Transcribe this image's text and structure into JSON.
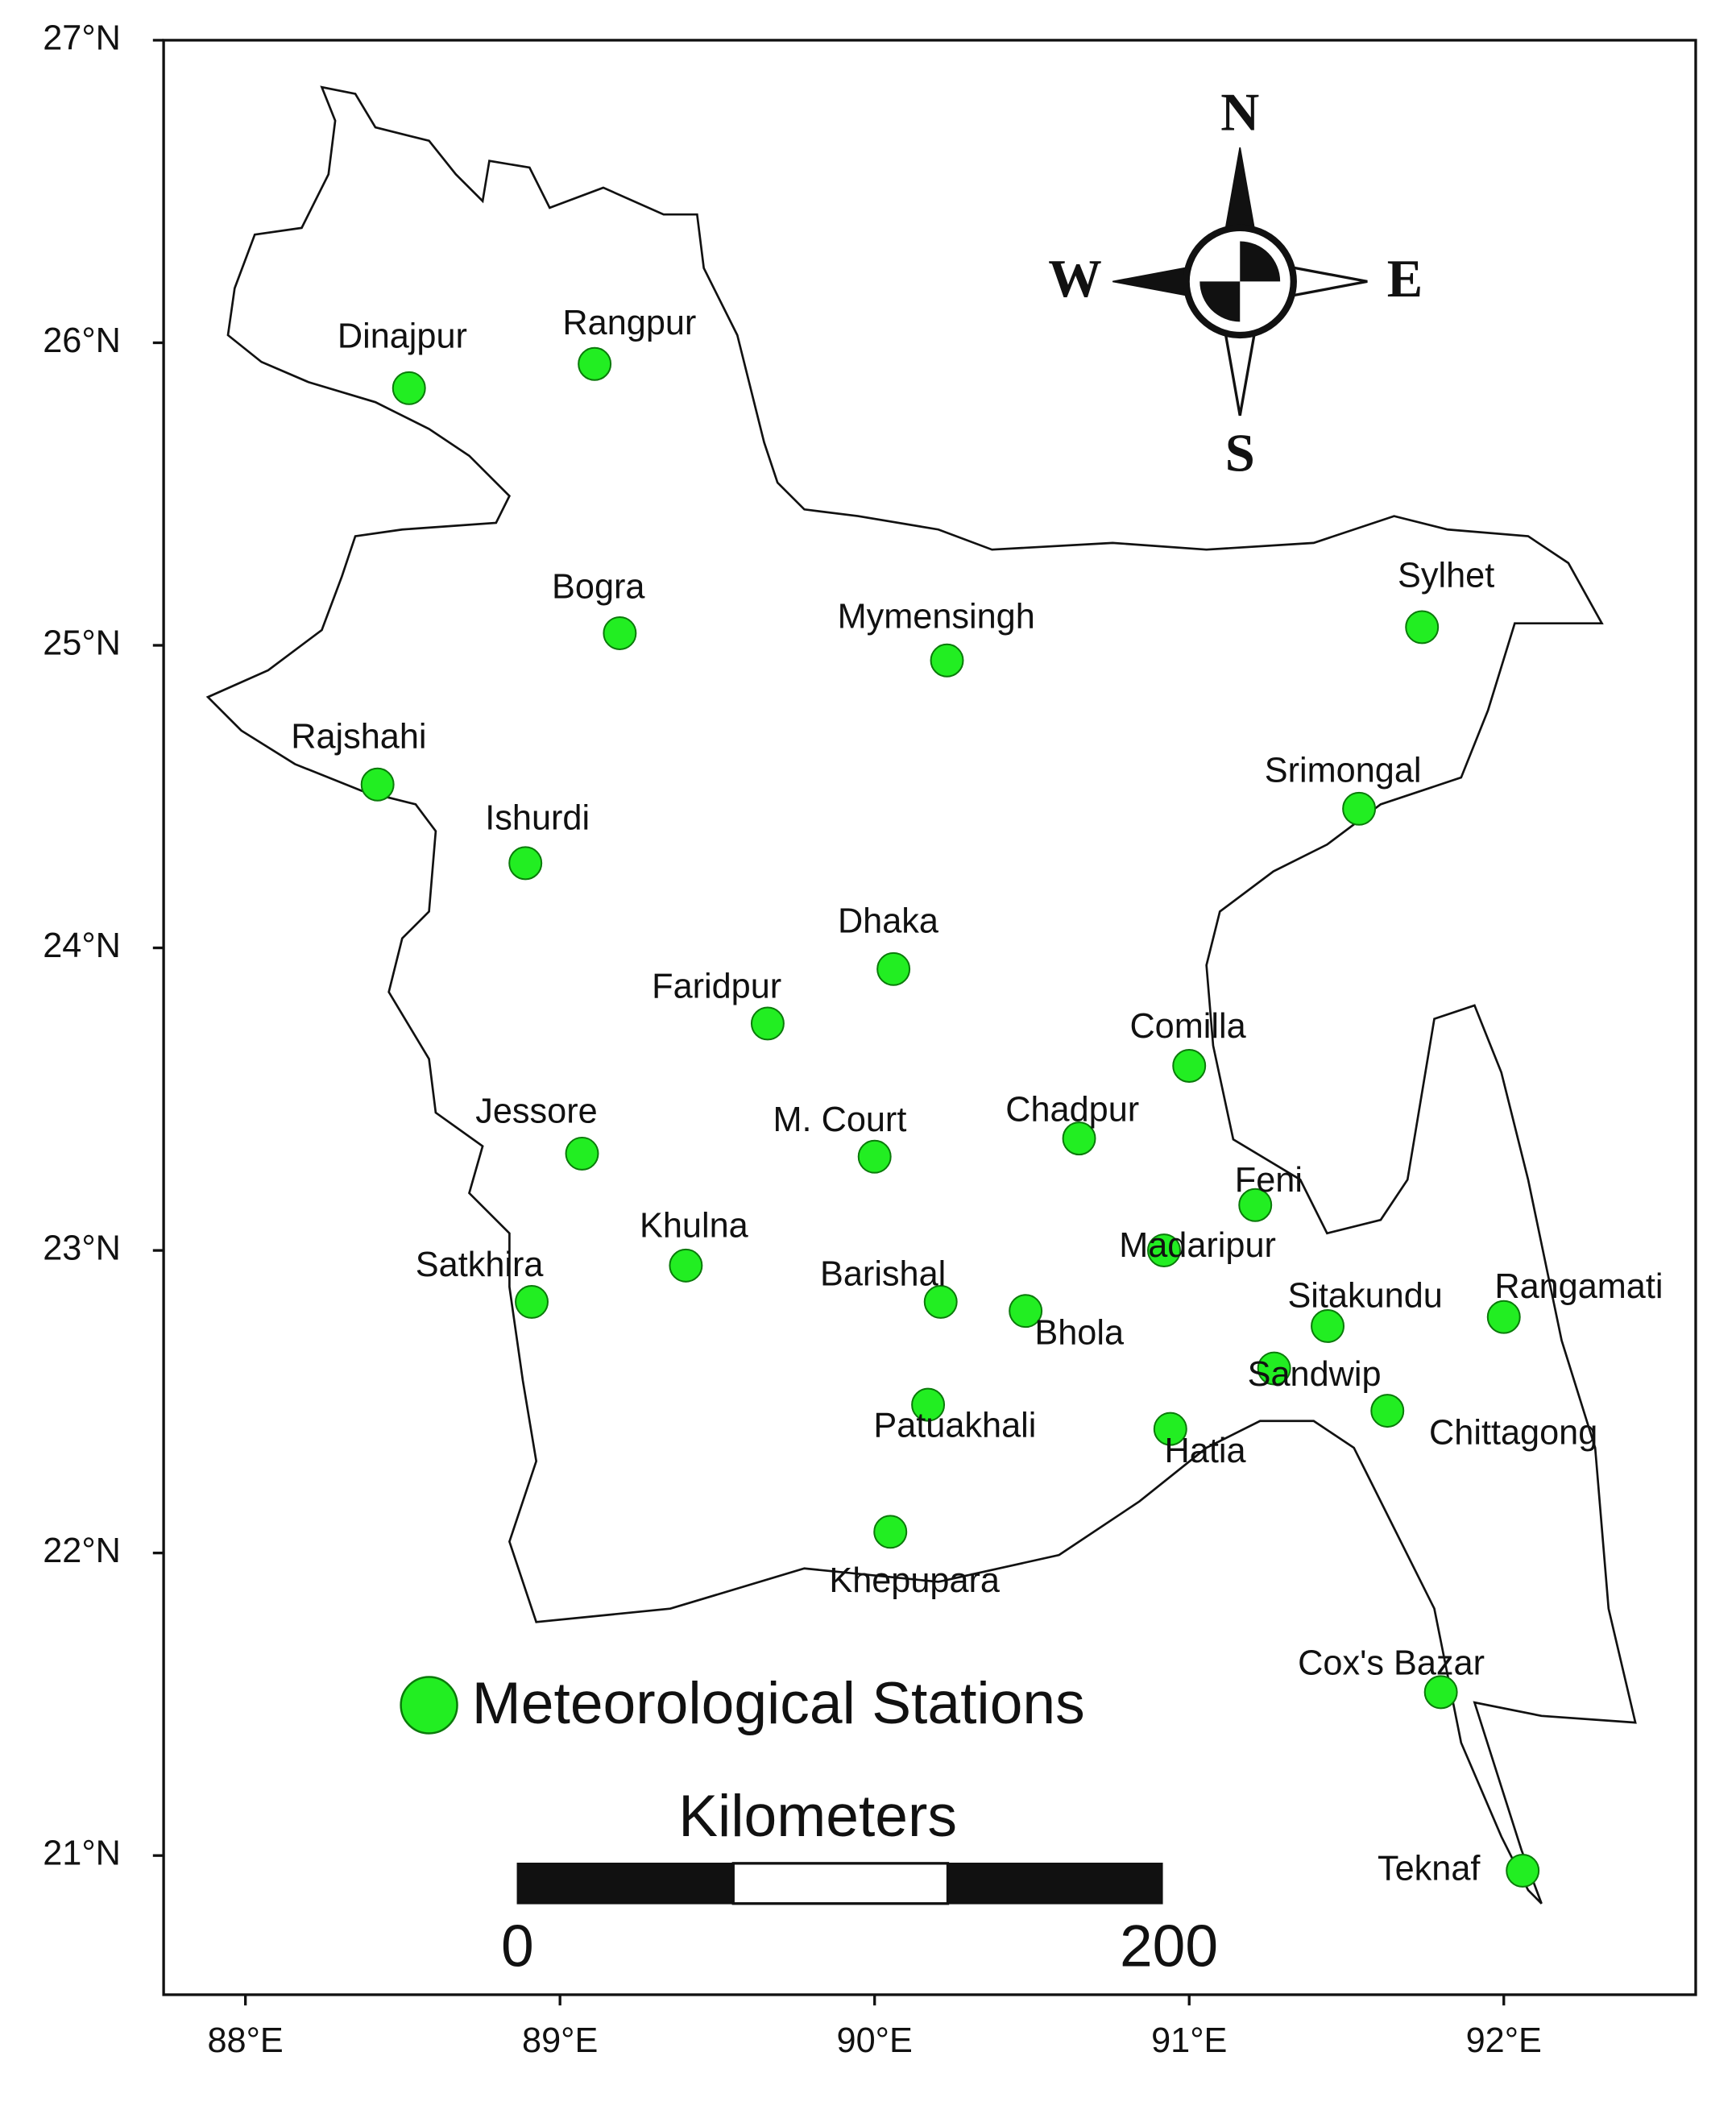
{
  "chart_data": {
    "type": "map",
    "xlim": [
      87.74,
      92.61
    ],
    "ylim": [
      20.54,
      27
    ],
    "xticks": [
      {
        "value": 88,
        "label": "88°E"
      },
      {
        "value": 89,
        "label": "89°E"
      },
      {
        "value": 90,
        "label": "90°E"
      },
      {
        "value": 91,
        "label": "91°E"
      },
      {
        "value": 92,
        "label": "92°E"
      }
    ],
    "yticks": [
      {
        "value": 21,
        "label": "21°N"
      },
      {
        "value": 22,
        "label": "22°N"
      },
      {
        "value": 23,
        "label": "23°N"
      },
      {
        "value": 24,
        "label": "24°N"
      },
      {
        "value": 25,
        "label": "25°N"
      },
      {
        "value": 26,
        "label": "26°N"
      },
      {
        "value": 27,
        "label": "27°N"
      }
    ],
    "series": [
      {
        "name": "Meteorological Stations",
        "color": "#22ee22",
        "point_labels": [
          "Dinajpur",
          "Rangpur",
          "Bogra",
          "Mymensingh",
          "Sylhet",
          "Rajshahi",
          "Ishurdi",
          "Srimongal",
          "Dhaka",
          "Faridpur",
          "Comilla",
          "Jessore",
          "M. Court",
          "Chadpur",
          "Feni",
          "Khulna",
          "Madaripur",
          "Satkhira",
          "Barishal",
          "Bhola",
          "Sitakundu",
          "Rangamati",
          "Sandwip",
          "Patuakhali",
          "Chittagong",
          "Hatia",
          "Khepupara",
          "Cox's Bazar",
          "Teknaf"
        ],
        "x": [
          88.52,
          89.11,
          89.19,
          90.23,
          91.74,
          88.42,
          88.89,
          91.54,
          90.06,
          89.66,
          91.0,
          89.07,
          90.0,
          90.65,
          91.21,
          89.4,
          90.92,
          88.91,
          90.21,
          90.48,
          91.44,
          92.0,
          91.27,
          90.17,
          91.63,
          90.94,
          90.05,
          91.8,
          92.06
        ],
        "values": [
          25.85,
          25.93,
          25.04,
          24.95,
          25.06,
          24.54,
          24.28,
          24.46,
          23.93,
          23.75,
          23.61,
          23.32,
          23.31,
          23.37,
          23.15,
          22.95,
          23.0,
          22.83,
          22.83,
          22.8,
          22.75,
          22.78,
          22.61,
          22.49,
          22.47,
          22.41,
          22.07,
          21.54,
          20.95
        ]
      }
    ],
    "scale_bar": {
      "title": "Kilometers",
      "ticks": [
        0,
        200
      ]
    },
    "compass": {
      "N": "N",
      "E": "E",
      "S": "S",
      "W": "W"
    }
  }
}
